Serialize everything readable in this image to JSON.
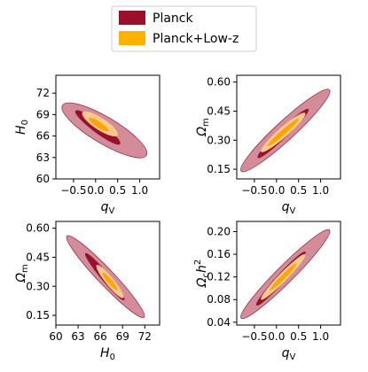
{
  "legend": {
    "entries": [
      {
        "label": "Planck",
        "color": "#9b0e2c"
      },
      {
        "label": "Planck+Low-z",
        "color": "#ffb200"
      }
    ]
  },
  "colors": {
    "planck_1sigma": "#9b0e2c",
    "planck_2sigma": "#d48b9a",
    "lowz_1sigma": "#ffa500",
    "lowz_2sigma": "#f7c98c",
    "edge": "#8a2236"
  },
  "chart_data": [
    {
      "type": "contour",
      "xlabel": "q",
      "xlabel_sub": "V",
      "ylabel": "H",
      "ylabel_sub": "0",
      "xlim": [
        -0.9,
        1.45
      ],
      "ylim": [
        60,
        74.5
      ],
      "xticks": [
        -0.5,
        0.0,
        0.5,
        1.0
      ],
      "xticklabels": [
        "−0.5",
        "0.0",
        "0.5",
        "1.0"
      ],
      "yticks": [
        60,
        63,
        66,
        69,
        72
      ],
      "yticklabels": [
        "60",
        "63",
        "66",
        "69",
        "72"
      ],
      "series": [
        {
          "name": "Planck",
          "level": "2σ",
          "center": [
            0.2,
            66.8
          ],
          "axis_end": [
            -0.75,
            70.3
          ],
          "width_end": [
            0.04,
            2.0
          ]
        },
        {
          "name": "Planck",
          "level": "1σ",
          "center": [
            0.05,
            67.2
          ],
          "axis_end": [
            -0.45,
            69.5
          ],
          "width_end": [
            0.0,
            0.9
          ]
        },
        {
          "name": "Planck+Low-z",
          "level": "2σ",
          "center": [
            0.1,
            67.7
          ],
          "axis_end": [
            -0.3,
            69.3
          ],
          "width_end": [
            0.04,
            0.85
          ]
        },
        {
          "name": "Planck+Low-z",
          "level": "1σ",
          "center": [
            0.07,
            67.6
          ],
          "axis_end": [
            -0.15,
            68.5
          ],
          "width_end": [
            0.02,
            0.42
          ]
        }
      ]
    },
    {
      "type": "contour",
      "xlabel": "q",
      "xlabel_sub": "V",
      "ylabel": "Ω",
      "ylabel_sub": "m",
      "xlim": [
        -0.9,
        1.45
      ],
      "ylim": [
        0.1,
        0.635
      ],
      "xticks": [
        -0.5,
        0.0,
        0.5,
        1.0
      ],
      "xticklabels": [
        "−0.5",
        "0.0",
        "0.5",
        "1.0"
      ],
      "yticks": [
        0.15,
        0.3,
        0.45,
        0.6
      ],
      "yticklabels": [
        "0.15",
        "0.30",
        "0.45",
        "0.60"
      ],
      "series": [
        {
          "name": "Planck",
          "level": "2σ",
          "center": [
            0.2,
            0.35
          ],
          "axis_end": [
            -0.8,
            0.14
          ],
          "width_end": [
            -0.08,
            0.05
          ]
        },
        {
          "name": "Planck",
          "level": "1σ",
          "center": [
            0.15,
            0.335
          ],
          "axis_end": [
            -0.42,
            0.21
          ],
          "width_end": [
            -0.04,
            0.022
          ]
        },
        {
          "name": "Planck+Low-z",
          "level": "2σ",
          "center": [
            0.15,
            0.34
          ],
          "axis_end": [
            -0.35,
            0.24
          ],
          "width_end": [
            -0.05,
            0.024
          ]
        },
        {
          "name": "Planck+Low-z",
          "level": "1σ",
          "center": [
            0.15,
            0.34
          ],
          "axis_end": [
            -0.2,
            0.27
          ],
          "width_end": [
            -0.025,
            0.012
          ]
        }
      ]
    },
    {
      "type": "contour",
      "xlabel": "H",
      "xlabel_sub": "0",
      "ylabel": "Ω",
      "ylabel_sub": "m",
      "xlim": [
        60,
        74
      ],
      "ylim": [
        0.1,
        0.635
      ],
      "xticks": [
        60,
        63,
        66,
        69,
        72
      ],
      "xticklabels": [
        "60",
        "63",
        "66",
        "69",
        "72"
      ],
      "yticks": [
        0.15,
        0.3,
        0.45,
        0.6
      ],
      "yticklabels": [
        "0.15",
        "0.30",
        "0.45",
        "0.60"
      ],
      "series": [
        {
          "name": "Planck",
          "level": "2σ",
          "center": [
            66.7,
            0.35
          ],
          "axis_end": [
            61.5,
            0.56
          ],
          "width_end": [
            0.75,
            0.03
          ]
        },
        {
          "name": "Planck",
          "level": "1σ",
          "center": [
            66.6,
            0.35
          ],
          "axis_end": [
            64.0,
            0.47
          ],
          "width_end": [
            0.35,
            0.015
          ]
        },
        {
          "name": "Planck+Low-z",
          "level": "2σ",
          "center": [
            67.3,
            0.325
          ],
          "axis_end": [
            65.5,
            0.41
          ],
          "width_end": [
            0.4,
            0.015
          ]
        },
        {
          "name": "Planck+Low-z",
          "level": "1σ",
          "center": [
            67.3,
            0.325
          ],
          "axis_end": [
            66.3,
            0.37
          ],
          "width_end": [
            0.22,
            0.008
          ]
        }
      ]
    },
    {
      "type": "contour",
      "xlabel": "q",
      "xlabel_sub": "V",
      "ylabel": "Ω",
      "ylabel_sub": "c",
      "ylabel_suffix": "h",
      "ylabel_sup": "2",
      "xlim": [
        -0.9,
        1.45
      ],
      "ylim": [
        0.035,
        0.218
      ],
      "xticks": [
        -0.5,
        0.0,
        0.5,
        1.0
      ],
      "xticklabels": [
        "−0.5",
        "0.0",
        "0.5",
        "1.0"
      ],
      "yticks": [
        0.04,
        0.08,
        0.12,
        0.16,
        0.2
      ],
      "yticklabels": [
        "0.04",
        "0.08",
        "0.12",
        "0.16",
        "0.20"
      ],
      "series": [
        {
          "name": "Planck",
          "level": "2σ",
          "center": [
            0.2,
            0.125
          ],
          "axis_end": [
            -0.8,
            0.047
          ],
          "width_end": [
            -0.07,
            0.016
          ]
        },
        {
          "name": "Planck",
          "level": "1σ",
          "center": [
            0.1,
            0.117
          ],
          "axis_end": [
            -0.45,
            0.07
          ],
          "width_end": [
            -0.035,
            0.008
          ]
        },
        {
          "name": "Planck+Low-z",
          "level": "2σ",
          "center": [
            0.15,
            0.12
          ],
          "axis_end": [
            -0.35,
            0.08
          ],
          "width_end": [
            -0.035,
            0.008
          ]
        },
        {
          "name": "Planck+Low-z",
          "level": "1σ",
          "center": [
            0.15,
            0.12
          ],
          "axis_end": [
            -0.15,
            0.096
          ],
          "width_end": [
            -0.018,
            0.004
          ]
        }
      ]
    }
  ]
}
